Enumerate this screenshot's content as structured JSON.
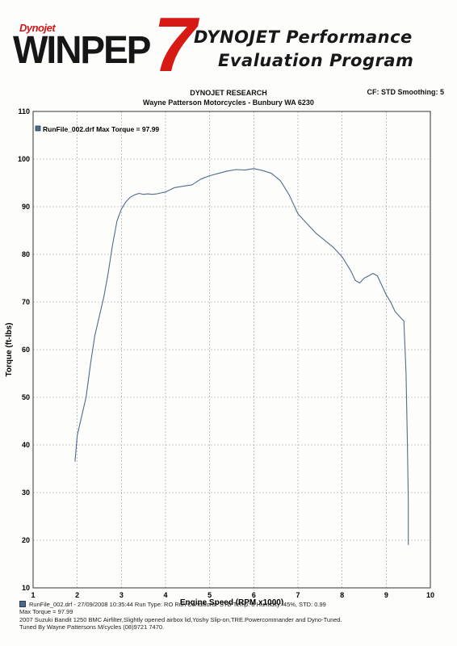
{
  "header": {
    "logo_small": "Dynojet",
    "logo_main": "WINPEP",
    "logo_number": "7",
    "program_line1": "DYNOJET Performance",
    "program_line2": "Evaluation Program",
    "research": "DYNOJET RESEARCH",
    "dealer": "Wayne Patterson Motorcycles - Bunbury WA 6230",
    "cf_smoothing": "CF: STD  Smoothing: 5"
  },
  "colors": {
    "curve": "#4f6c8c",
    "grid": "#9a9a9a",
    "logo_red": "#d81a14"
  },
  "chart_data": {
    "type": "line",
    "xlabel": "Engine Speed (RPM x1000)",
    "ylabel": "Torque (ft-lbs)",
    "xlim": [
      1,
      10
    ],
    "ylim": [
      10,
      110
    ],
    "xticks": [
      "1",
      "2",
      "3",
      "4",
      "5",
      "6",
      "7",
      "8",
      "9",
      "10"
    ],
    "yticks": [
      "10",
      "20",
      "30",
      "40",
      "50",
      "60",
      "70",
      "80",
      "90",
      "100",
      "110"
    ],
    "grid": true,
    "legend_position": "top-left",
    "series": [
      {
        "name": "RunFile_002.drf Max Torque = 97.99",
        "x": [
          1.95,
          2.0,
          2.1,
          2.2,
          2.3,
          2.4,
          2.5,
          2.6,
          2.7,
          2.8,
          2.9,
          3.0,
          3.1,
          3.2,
          3.3,
          3.4,
          3.5,
          3.6,
          3.7,
          3.8,
          3.9,
          4.0,
          4.2,
          4.4,
          4.6,
          4.8,
          5.0,
          5.2,
          5.4,
          5.6,
          5.8,
          6.0,
          6.2,
          6.4,
          6.6,
          6.8,
          7.0,
          7.2,
          7.4,
          7.6,
          7.8,
          8.0,
          8.2,
          8.3,
          8.4,
          8.5,
          8.6,
          8.7,
          8.8,
          8.9,
          9.0,
          9.1,
          9.2,
          9.3,
          9.4,
          9.45,
          9.48,
          9.5,
          9.5
        ],
        "y": [
          36.5,
          42,
          46,
          50,
          57,
          63,
          67,
          71,
          76,
          82,
          87,
          89.5,
          91,
          92,
          92.5,
          92.8,
          92.6,
          92.7,
          92.6,
          92.7,
          92.9,
          93.1,
          94.0,
          94.3,
          94.6,
          95.8,
          96.5,
          97.0,
          97.5,
          97.8,
          97.7,
          98.0,
          97.6,
          97.0,
          95.5,
          92.5,
          88.5,
          86.5,
          84.5,
          83.0,
          81.5,
          79.5,
          76.5,
          74.5,
          74.0,
          75.0,
          75.5,
          76.0,
          75.5,
          73.5,
          71.5,
          70.0,
          68.0,
          67.0,
          66.0,
          55.0,
          40.0,
          28.0,
          19.0
        ]
      }
    ]
  },
  "footer": {
    "line1": "RunFile_002.drf - 27/09/2008 10:35:44  Run Type: RO  Run Conditions: STD Temp: 0  Humidity: 45%, STD: 0.99",
    "line2": "Max Torque = 97.99",
    "line3": "2007 Suzuki Bandit 1250 BMC Airfilter,Slightly opened airbox lid,Yoshy Slip-on,TRE.Powercommander and Dyno-Tuned.",
    "line4": "Tuned By Wayne Pattersons M/cycles (08)9721 7470."
  }
}
